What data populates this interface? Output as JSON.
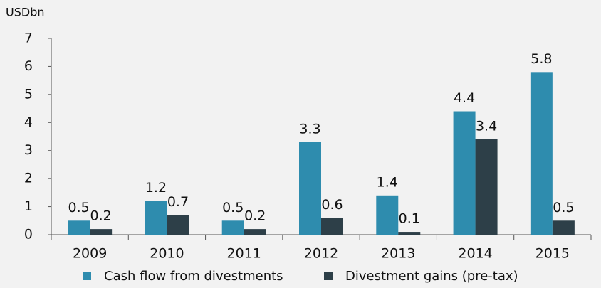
{
  "chart_data": {
    "type": "bar",
    "y_label": "USDbn",
    "categories": [
      "2009",
      "2010",
      "2011",
      "2012",
      "2013",
      "2014",
      "2015"
    ],
    "series": [
      {
        "name": "Cash flow from divestments",
        "color": "#2e8cae",
        "values": [
          0.5,
          1.2,
          0.5,
          3.3,
          1.4,
          4.4,
          5.8
        ]
      },
      {
        "name": "Divestment gains (pre-tax)",
        "color": "#2d3f48",
        "values": [
          0.2,
          0.7,
          0.2,
          0.6,
          0.1,
          3.4,
          0.5
        ]
      }
    ],
    "ylim": [
      0,
      7
    ],
    "yticks": [
      0,
      1,
      2,
      3,
      4,
      5,
      6,
      7
    ],
    "grid": false,
    "legend": "bottom"
  }
}
